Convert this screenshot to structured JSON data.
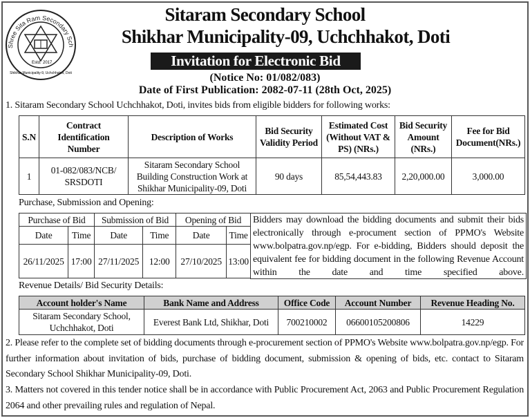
{
  "logo": {
    "ring_text": "Shree Sita Ram Secondary School",
    "estd": "Estd.",
    "year": "2017",
    "bottom_text": "Shikhar Municipality-9, Uchchhakot, Doti"
  },
  "header": {
    "school": "Sitaram Secondary School",
    "location": "Shikhar Municipality-09, Uchchhakot, Doti",
    "banner": "Invitation for Electronic Bid",
    "notice": "(Notice No: 01/082/083)",
    "publication": "Date of First Publication: 2082-07-11 (28th Oct, 2025)"
  },
  "para1": "1. Sitaram Secondary School Uchchhakot, Doti, invites bids from eligible bidders for following works:",
  "works_table": {
    "headers": [
      "S.N",
      "Contract Identification Number",
      "Description of Works",
      "Bid Security Validity Period",
      "Estimated Cost (Without VAT & PS) (NRs.)",
      "Bid Security Amount (NRs.)",
      "Fee for Bid Document(NRs.)"
    ],
    "rows": [
      [
        "1",
        "01-082/083/NCB/ SRSDOTI",
        "Sitaram Secondary School Building Construction Work at Shikhar Municipality-09, Doti",
        "90 days",
        "85,54,443.83",
        "2,20,000.00",
        "3,000.00"
      ]
    ]
  },
  "schedule_label": "Purchase, Submission and Opening:",
  "schedule_table": {
    "groups": [
      "Purchase of Bid",
      "Submission of Bid",
      "Opening of Bid"
    ],
    "sub": [
      "Date",
      "Time",
      "Date",
      "Time",
      "Date",
      "Time"
    ],
    "values": [
      "26/11/2025",
      "17:00",
      "27/11/2025",
      "12:00",
      "27/10/2025",
      "13:00"
    ]
  },
  "schedule_note": "Bidders may download the bidding documents and submit their bids electronically through e-procument section of PPMO's Website www.bolpatra.gov.np/egp. For e-bidding, Bidders should deposit the equivalent fee for bidding document in the following Revenue Account within the date and time specified above.",
  "revenue_label": "Revenue Details/ Bid Security Details:",
  "revenue_table": {
    "headers": [
      "Account holder's Name",
      "Bank Name and Address",
      "Office Code",
      "Account Number",
      "Revenue Heading No."
    ],
    "rows": [
      [
        "Sitaram Secondary School, Uchchhakot, Doti",
        "Everest Bank  Ltd, Shikhar, Doti",
        "700210002",
        "06600105200806",
        "14229"
      ]
    ]
  },
  "para2": "2. Please refer to the complete set of bidding documents through e-procurement section of PPMO's Website www.bolpatra.gov.np/egp. For further information about invitation of bids, purchase of bidding document, submission & opening of bids, etc. contact to Sitaram Secondary School Shikhar Municipality-09, Doti.",
  "para3": "3. Matters not covered in this tender notice shall be in accordance with Public Procurement Act, 2063 and Public Procurement Regulation 2064 and other prevailing rules and regulation of Nepal."
}
